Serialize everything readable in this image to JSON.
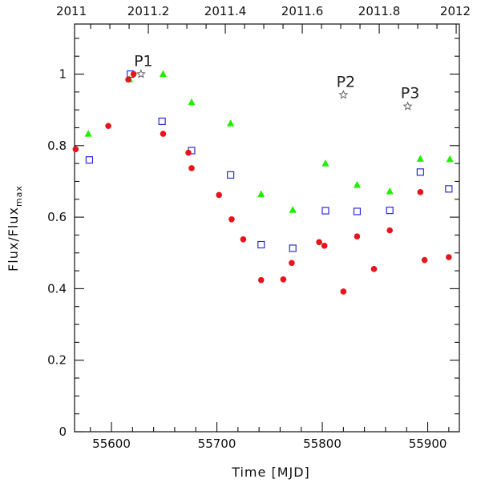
{
  "chart_data": {
    "type": "scatter",
    "title": "",
    "xlabel": "Time [MJD]",
    "ylabel_main": "Flux/Flux",
    "ylabel_sub": "max",
    "xlim": [
      55565,
      55930
    ],
    "ylim": [
      0,
      1.14
    ],
    "x_ticks": [
      55600,
      55700,
      55800,
      55900
    ],
    "x_tick_labels": [
      "55600",
      "55700",
      "55800",
      "55900"
    ],
    "y_ticks": [
      0,
      0.2,
      0.4,
      0.6,
      0.8,
      1
    ],
    "y_tick_labels": [
      "0",
      "0.2",
      "0.4",
      "0.6",
      "0.8",
      "1"
    ],
    "top_axis": {
      "tick_labels": [
        "2011",
        "2011.2",
        "2011.4",
        "2011.6",
        "2011.8",
        "2012"
      ],
      "tick_mjd": [
        55562,
        55635,
        55708,
        55781,
        55854,
        55927
      ]
    },
    "grid": false,
    "series": [
      {
        "marker": "circle-filled",
        "color": "#e8141c",
        "points": [
          [
            55566,
            0.79
          ],
          [
            55597,
            0.855
          ],
          [
            55616,
            0.985
          ],
          [
            55621,
            1.0
          ],
          [
            55649,
            0.833
          ],
          [
            55673,
            0.78
          ],
          [
            55676,
            0.737
          ],
          [
            55702,
            0.662
          ],
          [
            55714,
            0.594
          ],
          [
            55725,
            0.538
          ],
          [
            55742,
            0.424
          ],
          [
            55763,
            0.426
          ],
          [
            55771,
            0.472
          ],
          [
            55797,
            0.53
          ],
          [
            55802,
            0.52
          ],
          [
            55820,
            0.392
          ],
          [
            55833,
            0.546
          ],
          [
            55849,
            0.455
          ],
          [
            55864,
            0.563
          ],
          [
            55893,
            0.67
          ],
          [
            55897,
            0.48
          ],
          [
            55920,
            0.488
          ]
        ]
      },
      {
        "marker": "square-open",
        "color": "#2a2ad8",
        "points": [
          [
            55579,
            0.76
          ],
          [
            55618,
            1.0
          ],
          [
            55648,
            0.868
          ],
          [
            55676,
            0.786
          ],
          [
            55713,
            0.718
          ],
          [
            55742,
            0.523
          ],
          [
            55772,
            0.513
          ],
          [
            55803,
            0.618
          ],
          [
            55833,
            0.616
          ],
          [
            55864,
            0.619
          ],
          [
            55893,
            0.726
          ],
          [
            55920,
            0.679
          ]
        ]
      },
      {
        "marker": "triangle-filled",
        "color": "#22ee00",
        "points": [
          [
            55578,
            0.833
          ],
          [
            55617,
            0.985
          ],
          [
            55649,
            1.0
          ],
          [
            55676,
            0.921
          ],
          [
            55713,
            0.862
          ],
          [
            55742,
            0.664
          ],
          [
            55772,
            0.62
          ],
          [
            55803,
            0.75
          ],
          [
            55833,
            0.69
          ],
          [
            55864,
            0.672
          ],
          [
            55893,
            0.763
          ],
          [
            55921,
            0.762
          ]
        ]
      },
      {
        "marker": "star-open",
        "color": "#555555",
        "points": [
          [
            55628,
            1.0
          ],
          [
            55820,
            0.942
          ],
          [
            55881,
            0.91
          ]
        ]
      }
    ],
    "annotations": [
      {
        "text": "P1",
        "x": 55628,
        "y": 1.0
      },
      {
        "text": "P2",
        "x": 55820,
        "y": 0.942
      },
      {
        "text": "P3",
        "x": 55881,
        "y": 0.91
      }
    ]
  }
}
